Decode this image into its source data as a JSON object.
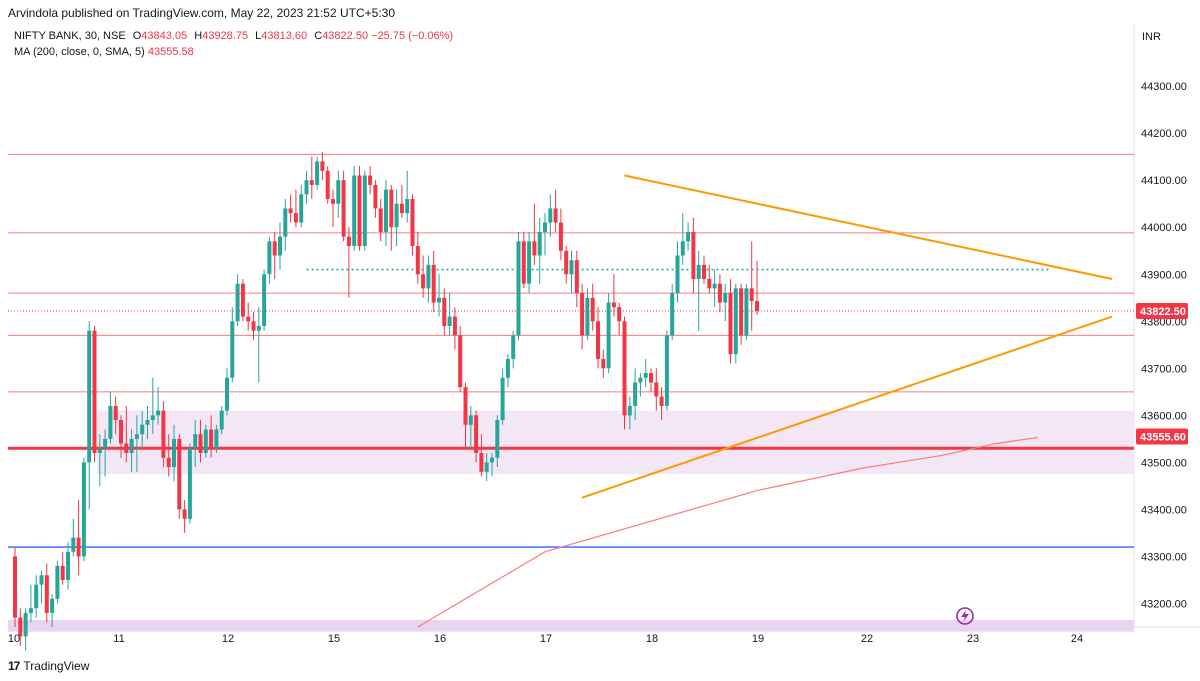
{
  "header": {
    "published": "Arvindola published on TradingView.com, May 22, 2023 21:52 UTC+5:30",
    "symbol": "NIFTY BANK, 30, NSE",
    "o_label": "O",
    "o": "43843.05",
    "h_label": "H",
    "h": "43928.75",
    "l_label": "L",
    "l": "43813.60",
    "c_label": "C",
    "c": "43822.50",
    "change": "−25.75 (−0.06%)",
    "ma_label": "MA (200, close, 0, SMA, 5)",
    "ma_value": "43555.58",
    "currency": "INR"
  },
  "footer": {
    "brand": "TradingView",
    "logo": "17"
  },
  "chart_data": {
    "type": "candlestick",
    "ylim": [
      43150,
      44430
    ],
    "y_ticks": [
      43200,
      43300,
      43400,
      43500,
      43600,
      43700,
      43800,
      43900,
      44000,
      44100,
      44200,
      44300
    ],
    "y_tick_labels": [
      "43200.00",
      "43300.00",
      "43400.00",
      "43500.00",
      "43600.00",
      "43700.00",
      "43800.00",
      "43900.00",
      "44000.00",
      "44100.00",
      "44200.00",
      "44300.00"
    ],
    "x_tick_labels": [
      "10",
      "11",
      "12",
      "15",
      "16",
      "17",
      "18",
      "19",
      "22",
      "23",
      "24"
    ],
    "last_price_label": "43822.50",
    "ma_price_label": "43555.60",
    "colors": {
      "up": "#26a69a",
      "down": "#f23645",
      "hline": "#f77c80",
      "zone": "#f3e6f5",
      "trend": "#ff9800",
      "blue": "#2962ff",
      "ma": "#f77c80",
      "dotted": "#26a69a"
    },
    "horizontal_levels": [
      44155,
      43988,
      43860,
      43770,
      43650,
      43530
    ],
    "support_zone": [
      43475,
      43610
    ],
    "bottom_zone": [
      43140,
      43165
    ],
    "blue_level": 43320,
    "prev_high_dotted": 43910,
    "trendlines": [
      {
        "name": "upper",
        "from_bar": 115,
        "from": 44110,
        "to_bar": 207,
        "to": 43890
      },
      {
        "name": "lower",
        "from_bar": 107,
        "from": 43425,
        "to_bar": 207,
        "to": 43810
      }
    ],
    "ma_series": [
      [
        76,
        43150
      ],
      [
        100,
        43310
      ],
      [
        120,
        43375
      ],
      [
        140,
        43440
      ],
      [
        160,
        43488
      ],
      [
        175,
        43515
      ],
      [
        185,
        43540
      ],
      [
        193,
        43553
      ]
    ],
    "candles": [
      [
        43300,
        43320,
        43150,
        43170
      ],
      [
        43170,
        43190,
        43110,
        43130
      ],
      [
        43130,
        43190,
        43100,
        43180
      ],
      [
        43180,
        43240,
        43160,
        43190
      ],
      [
        43190,
        43260,
        43170,
        43240
      ],
      [
        43240,
        43270,
        43200,
        43260
      ],
      [
        43260,
        43285,
        43160,
        43180
      ],
      [
        43180,
        43220,
        43150,
        43210
      ],
      [
        43210,
        43290,
        43200,
        43280
      ],
      [
        43280,
        43310,
        43240,
        43250
      ],
      [
        43250,
        43330,
        43230,
        43310
      ],
      [
        43310,
        43380,
        43300,
        43340
      ],
      [
        43340,
        43420,
        43260,
        43300
      ],
      [
        43300,
        43510,
        43290,
        43500
      ],
      [
        43500,
        43800,
        43400,
        43780
      ],
      [
        43780,
        43790,
        43500,
        43520
      ],
      [
        43520,
        43560,
        43450,
        43530
      ],
      [
        43530,
        43570,
        43470,
        43550
      ],
      [
        43550,
        43650,
        43540,
        43620
      ],
      [
        43620,
        43640,
        43560,
        43590
      ],
      [
        43590,
        43600,
        43510,
        43540
      ],
      [
        43540,
        43620,
        43500,
        43520
      ],
      [
        43520,
        43570,
        43480,
        43550
      ],
      [
        43550,
        43600,
        43480,
        43560
      ],
      [
        43560,
        43610,
        43530,
        43580
      ],
      [
        43580,
        43620,
        43550,
        43590
      ],
      [
        43590,
        43680,
        43560,
        43600
      ],
      [
        43600,
        43660,
        43580,
        43610
      ],
      [
        43610,
        43630,
        43490,
        43510
      ],
      [
        43510,
        43560,
        43470,
        43490
      ],
      [
        43490,
        43580,
        43460,
        43550
      ],
      [
        43550,
        43560,
        43380,
        43400
      ],
      [
        43400,
        43420,
        43350,
        43380
      ],
      [
        43380,
        43540,
        43370,
        43530
      ],
      [
        43530,
        43590,
        43490,
        43560
      ],
      [
        43560,
        43590,
        43500,
        43520
      ],
      [
        43520,
        43580,
        43510,
        43570
      ],
      [
        43570,
        43600,
        43510,
        43530
      ],
      [
        43530,
        43580,
        43520,
        43570
      ],
      [
        43570,
        43620,
        43560,
        43610
      ],
      [
        43610,
        43700,
        43600,
        43680
      ],
      [
        43680,
        43830,
        43670,
        43800
      ],
      [
        43800,
        43900,
        43790,
        43880
      ],
      [
        43880,
        43890,
        43800,
        43810
      ],
      [
        43810,
        43840,
        43780,
        43800
      ],
      [
        43800,
        43820,
        43760,
        43780
      ],
      [
        43780,
        43830,
        43670,
        43790
      ],
      [
        43790,
        43910,
        43780,
        43900
      ],
      [
        43900,
        43980,
        43880,
        43970
      ],
      [
        43970,
        43990,
        43890,
        43940
      ],
      [
        43940,
        44010,
        43910,
        43980
      ],
      [
        43980,
        44060,
        43950,
        44040
      ],
      [
        44040,
        44070,
        44010,
        44030
      ],
      [
        44030,
        44080,
        44000,
        44010
      ],
      [
        44010,
        44090,
        44000,
        44070
      ],
      [
        44070,
        44120,
        44050,
        44100
      ],
      [
        44100,
        44150,
        44060,
        44090
      ],
      [
        44090,
        44150,
        44080,
        44140
      ],
      [
        44140,
        44160,
        44100,
        44120
      ],
      [
        44120,
        44130,
        44050,
        44060
      ],
      [
        44060,
        44080,
        44000,
        44050
      ],
      [
        44050,
        44120,
        44020,
        44100
      ],
      [
        44100,
        44120,
        43970,
        43980
      ],
      [
        43980,
        44000,
        43850,
        43960
      ],
      [
        43960,
        44130,
        43950,
        44110
      ],
      [
        44110,
        44130,
        43950,
        43960
      ],
      [
        43960,
        44120,
        43950,
        44110
      ],
      [
        44110,
        44130,
        44070,
        44090
      ],
      [
        44090,
        44100,
        44020,
        44040
      ],
      [
        44040,
        44060,
        43970,
        43990
      ],
      [
        43990,
        44100,
        43960,
        44080
      ],
      [
        44080,
        44090,
        43950,
        44000
      ],
      [
        44000,
        44080,
        43960,
        44050
      ],
      [
        44050,
        44090,
        44020,
        44030
      ],
      [
        44030,
        44120,
        44010,
        44060
      ],
      [
        44060,
        44070,
        43940,
        43960
      ],
      [
        43960,
        43990,
        43880,
        43900
      ],
      [
        43900,
        43940,
        43850,
        43870
      ],
      [
        43870,
        43940,
        43840,
        43920
      ],
      [
        43920,
        43950,
        43820,
        43840
      ],
      [
        43840,
        43900,
        43810,
        43850
      ],
      [
        43850,
        43870,
        43770,
        43790
      ],
      [
        43790,
        43860,
        43770,
        43810
      ],
      [
        43810,
        43830,
        43740,
        43770
      ],
      [
        43770,
        43790,
        43650,
        43660
      ],
      [
        43660,
        43670,
        43530,
        43580
      ],
      [
        43580,
        43620,
        43530,
        43600
      ],
      [
        43600,
        43610,
        43500,
        43520
      ],
      [
        43520,
        43560,
        43470,
        43480
      ],
      [
        43480,
        43520,
        43460,
        43500
      ],
      [
        43500,
        43520,
        43470,
        43510
      ],
      [
        43510,
        43600,
        43490,
        43590
      ],
      [
        43590,
        43700,
        43580,
        43680
      ],
      [
        43680,
        43730,
        43660,
        43720
      ],
      [
        43720,
        43780,
        43700,
        43770
      ],
      [
        43770,
        43990,
        43760,
        43970
      ],
      [
        43970,
        43990,
        43870,
        43880
      ],
      [
        43880,
        43990,
        43860,
        43970
      ],
      [
        43970,
        44050,
        43920,
        43940
      ],
      [
        43940,
        44020,
        43880,
        43990
      ],
      [
        43990,
        44030,
        43940,
        44010
      ],
      [
        44010,
        44070,
        43980,
        44040
      ],
      [
        44040,
        44080,
        43990,
        44010
      ],
      [
        44010,
        44040,
        43930,
        43950
      ],
      [
        43950,
        43960,
        43880,
        43900
      ],
      [
        43900,
        43950,
        43860,
        43930
      ],
      [
        43930,
        43950,
        43830,
        43860
      ],
      [
        43860,
        43880,
        43740,
        43770
      ],
      [
        43770,
        43870,
        43760,
        43850
      ],
      [
        43850,
        43880,
        43780,
        43800
      ],
      [
        43800,
        43830,
        43700,
        43720
      ],
      [
        43720,
        43740,
        43680,
        43700
      ],
      [
        43700,
        43860,
        43690,
        43840
      ],
      [
        43840,
        43900,
        43810,
        43830
      ],
      [
        43830,
        43840,
        43770,
        43800
      ],
      [
        43800,
        43810,
        43570,
        43600
      ],
      [
        43600,
        43640,
        43570,
        43620
      ],
      [
        43620,
        43700,
        43590,
        43670
      ],
      [
        43670,
        43690,
        43640,
        43680
      ],
      [
        43680,
        43720,
        43660,
        43690
      ],
      [
        43690,
        43700,
        43650,
        43670
      ],
      [
        43670,
        43700,
        43610,
        43640
      ],
      [
        43640,
        43660,
        43590,
        43620
      ],
      [
        43620,
        43780,
        43610,
        43770
      ],
      [
        43770,
        43880,
        43760,
        43860
      ],
      [
        43860,
        43970,
        43840,
        43940
      ],
      [
        43940,
        44030,
        43920,
        43970
      ],
      [
        43970,
        44010,
        43950,
        43990
      ],
      [
        43990,
        44020,
        43860,
        43890
      ],
      [
        43890,
        43950,
        43780,
        43920
      ],
      [
        43920,
        43940,
        43880,
        43890
      ],
      [
        43890,
        43920,
        43860,
        43870
      ],
      [
        43870,
        43910,
        43830,
        43880
      ],
      [
        43880,
        43900,
        43820,
        43840
      ],
      [
        43840,
        43880,
        43800,
        43860
      ],
      [
        43860,
        43890,
        43710,
        43730
      ],
      [
        43730,
        43880,
        43710,
        43870
      ],
      [
        43870,
        43880,
        43750,
        43770
      ],
      [
        43770,
        43880,
        43760,
        43870
      ],
      [
        43870,
        43970,
        43780,
        43843
      ],
      [
        43843,
        43929,
        43814,
        43822
      ]
    ]
  }
}
